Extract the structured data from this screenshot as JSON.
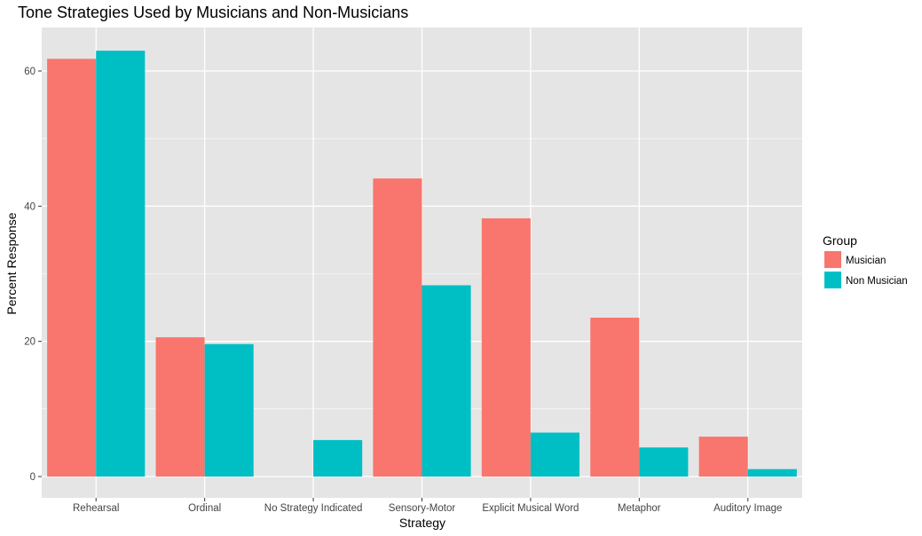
{
  "chart_data": {
    "type": "bar",
    "title": "Tone Strategies Used by Musicians and Non-Musicians",
    "xlabel": "Strategy",
    "ylabel": "Percent Response",
    "ylim": [
      0,
      65
    ],
    "yticks": [
      0,
      20,
      40,
      60
    ],
    "grid": true,
    "legend": {
      "title": "Group",
      "position": "right"
    },
    "categories": [
      "Rehearsal",
      "Ordinal",
      "No Strategy Indicated",
      "Sensory-Motor",
      "Explicit Musical Word",
      "Metaphor",
      "Auditory Image"
    ],
    "series": [
      {
        "name": "Musician",
        "color": "#F8766D",
        "values": [
          61.8,
          20.6,
          0,
          44.1,
          38.2,
          23.5,
          5.9
        ]
      },
      {
        "name": "Non Musician",
        "color": "#00BFC4",
        "values": [
          63.0,
          19.6,
          5.4,
          28.3,
          6.5,
          4.3,
          1.1
        ]
      }
    ],
    "panel_background": "#E5E5E5",
    "grid_color": "#FFFFFF"
  }
}
